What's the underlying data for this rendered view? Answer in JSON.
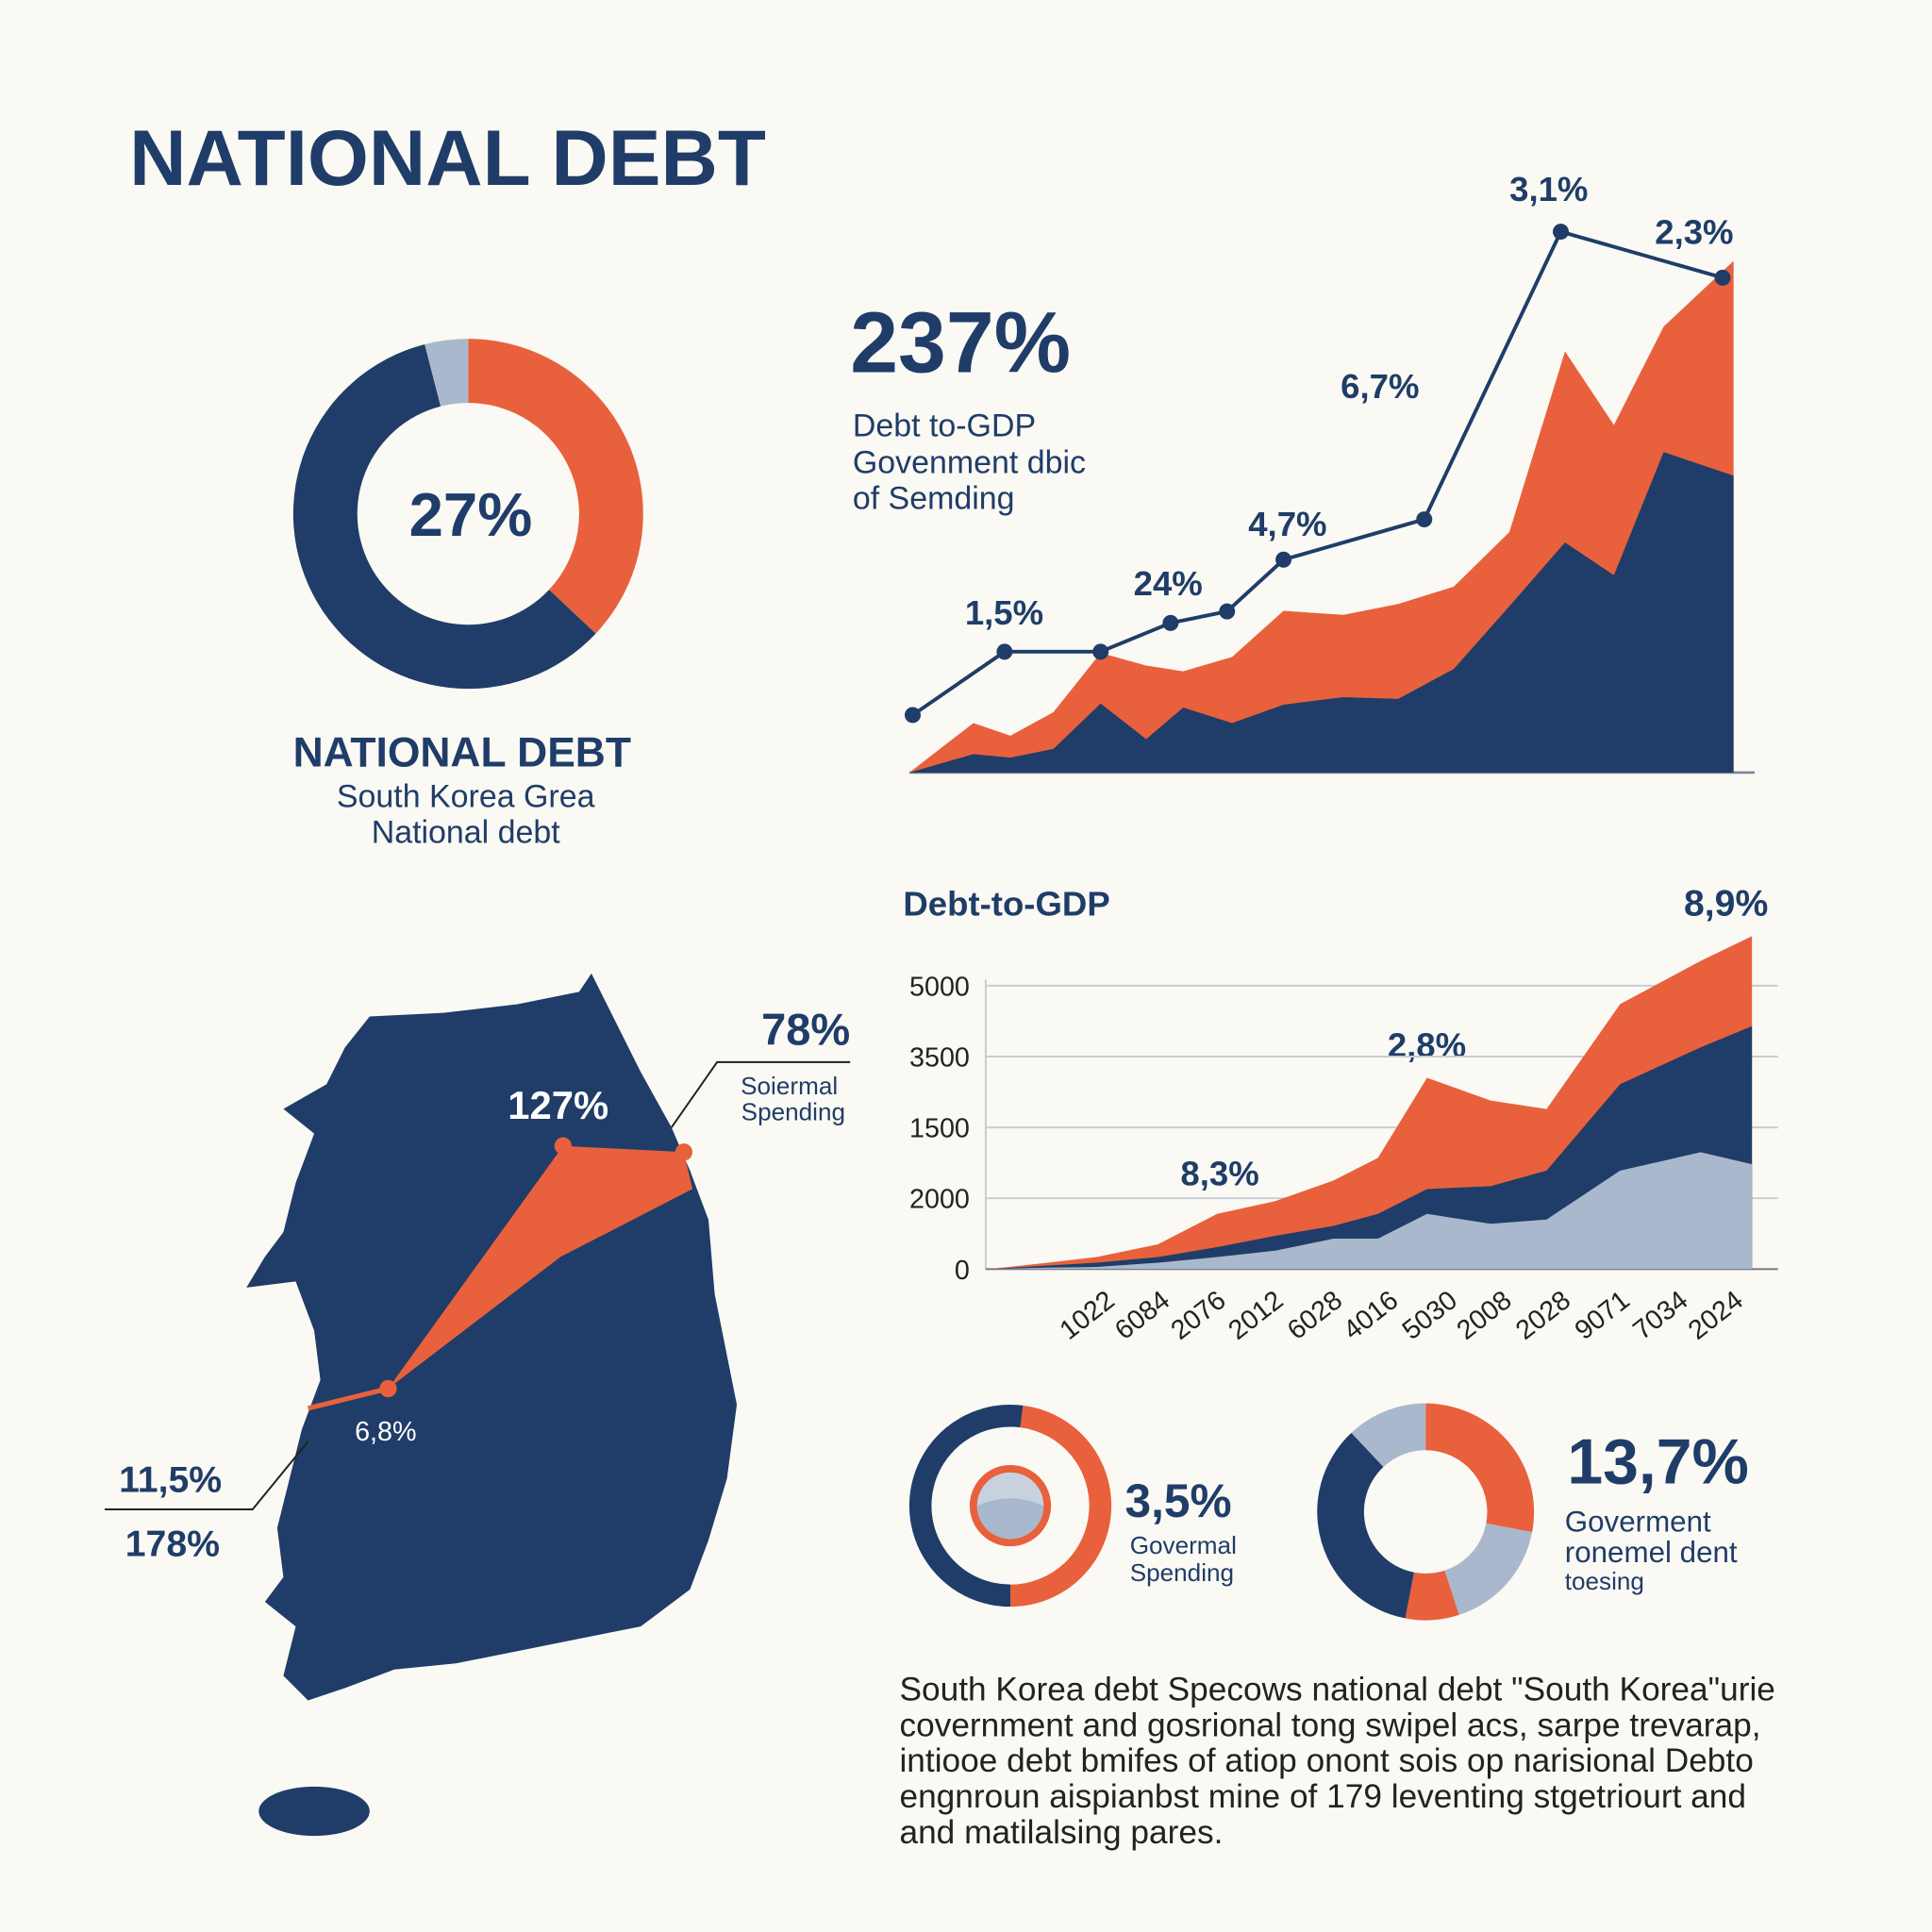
{
  "title": "NATIONAL DEBT",
  "chart_data": [
    {
      "type": "pie",
      "center_label": "27%",
      "title": "NATIONAL DEBT",
      "subtitle": [
        "South Korea Grea",
        "National debt"
      ],
      "values": [
        37,
        59,
        4
      ],
      "colors": [
        "#e8613c",
        "#1f3d68",
        "#a9b8cc"
      ]
    },
    {
      "type": "area",
      "headline": "237%",
      "subtitle": [
        "Debt to-GDP",
        "Govenment dbic",
        "of Semding"
      ],
      "annotations": [
        "1,5%",
        "24%",
        "4,7%",
        "6,7%",
        "3,1%",
        "2,3%"
      ],
      "xlim": [
        0,
        100
      ],
      "ylim": [
        0,
        100
      ],
      "series": [
        {
          "kind": "area",
          "color": "#e8613c",
          "x": [
            0,
            7.6,
            12.0,
            17.1,
            22.7,
            28.1,
            32.5,
            38.3,
            44.4,
            51.5,
            58.0,
            64.6,
            71.2,
            77.8,
            83.6,
            89.5,
            97.8
          ],
          "values": [
            0,
            8.6,
            6.4,
            10.5,
            20.8,
            18.6,
            17.6,
            20.1,
            28.1,
            27.4,
            29.3,
            32.3,
            41.8,
            73.2,
            60.4,
            77.5,
            88.9
          ]
        },
        {
          "kind": "area",
          "color": "#1f3d68",
          "x": [
            0,
            7.6,
            12.0,
            17.1,
            22.7,
            28.1,
            32.5,
            38.3,
            44.4,
            51.5,
            58.0,
            64.6,
            71.2,
            77.8,
            83.6,
            89.5,
            97.8
          ],
          "values": [
            0,
            3.2,
            2.6,
            4.1,
            12.0,
            5.8,
            11.3,
            8.6,
            11.8,
            13.1,
            12.8,
            18.0,
            28.9,
            40.0,
            34.3,
            55.7,
            51.6
          ]
        },
        {
          "kind": "line",
          "color": "#1f3d68",
          "x": [
            0.4,
            11.3,
            22.7,
            31.0,
            37.7,
            44.4,
            61.1,
            77.3,
            96.5
          ],
          "values": [
            10,
            21,
            21,
            26,
            28,
            37,
            44,
            94,
            86
          ]
        }
      ]
    },
    {
      "type": "area",
      "title": "Debt-to-GDP",
      "annotations": [
        "8,9%",
        "2,8%",
        "8,3%"
      ],
      "grid": true,
      "xlim": [
        0,
        100
      ],
      "ylim": [
        0,
        5
      ],
      "yticks": [
        0,
        {
          "value": 1,
          "label": "2000"
        },
        {
          "value": 2,
          "label": "1500"
        },
        {
          "value": 3,
          "label": "3500"
        },
        {
          "value": 4,
          "label": "5000"
        }
      ],
      "xticks": [
        {
          "value": 15.6,
          "label": "1022"
        },
        {
          "value": 22.8,
          "label": "6084"
        },
        {
          "value": 30.1,
          "label": "2076"
        },
        {
          "value": 37.6,
          "label": "2012"
        },
        {
          "value": 45.3,
          "label": "6028"
        },
        {
          "value": 52.6,
          "label": "4016"
        },
        {
          "value": 60.3,
          "label": "5030"
        },
        {
          "value": 67.4,
          "label": "2008"
        },
        {
          "value": 75.1,
          "label": "2028"
        },
        {
          "value": 82.8,
          "label": "9071"
        },
        {
          "value": 90.4,
          "label": "7034"
        },
        {
          "value": 97.6,
          "label": "2024"
        }
      ],
      "series": [
        {
          "kind": "area",
          "color": "#e8613c",
          "x": [
            0,
            7.6,
            14.0,
            22.0,
            29.7,
            37.3,
            44.9,
            50.7,
            57.1,
            65.4,
            72.7,
            82.3,
            92.8,
            99.5
          ],
          "values": [
            0,
            0.09,
            0.17,
            0.35,
            0.78,
            0.96,
            1.25,
            1.57,
            2.7,
            2.38,
            2.26,
            3.74,
            4.35,
            4.7
          ]
        },
        {
          "kind": "area",
          "color": "#1f3d68",
          "x": [
            0,
            7.6,
            14.0,
            22.0,
            29.7,
            37.3,
            44.9,
            50.7,
            57.1,
            65.4,
            72.7,
            82.3,
            92.8,
            99.5
          ],
          "values": [
            0,
            0.05,
            0.09,
            0.17,
            0.31,
            0.47,
            0.61,
            0.78,
            1.13,
            1.17,
            1.39,
            2.61,
            3.13,
            3.43
          ]
        },
        {
          "kind": "area",
          "color": "#a9b8cc",
          "x": [
            0,
            7.6,
            14.0,
            22.0,
            29.7,
            37.3,
            44.9,
            50.7,
            57.1,
            65.4,
            72.7,
            82.3,
            92.8,
            99.5
          ],
          "values": [
            0,
            0.02,
            0.03,
            0.09,
            0.17,
            0.26,
            0.43,
            0.43,
            0.78,
            0.64,
            0.7,
            1.39,
            1.65,
            1.48
          ]
        }
      ]
    },
    {
      "type": "pie",
      "headline": "3,5%",
      "caption": [
        "Govermal",
        "Spending"
      ],
      "values": [
        48,
        52
      ],
      "colors": [
        "#e8613c",
        "#1f3d68"
      ]
    },
    {
      "type": "pie",
      "headline": "13,7%",
      "caption": [
        "Goverment",
        "ronemel dent",
        "toesing"
      ],
      "values": [
        28,
        17,
        8,
        35,
        12
      ],
      "colors": [
        "#e8613c",
        "#a9b8cc",
        "#e8613c",
        "#1f3d68",
        "#a9b8cc"
      ]
    }
  ],
  "map": {
    "labels": [
      "78%",
      "Soiermal",
      "Spending",
      "127%",
      "6,8%",
      "11,5%",
      "178%"
    ]
  },
  "paragraph": [
    "South Korea debt Specows national debt \"South Korea\"urie",
    "covernment and gosrional tong swipel acs, sarpe trevarap,",
    "intiooe debt bmifes of atiop onont sois op narisional Debto",
    "engnroun aispianbst mine of 179 leventing stgetriourt and",
    "and matilalsing pares."
  ]
}
